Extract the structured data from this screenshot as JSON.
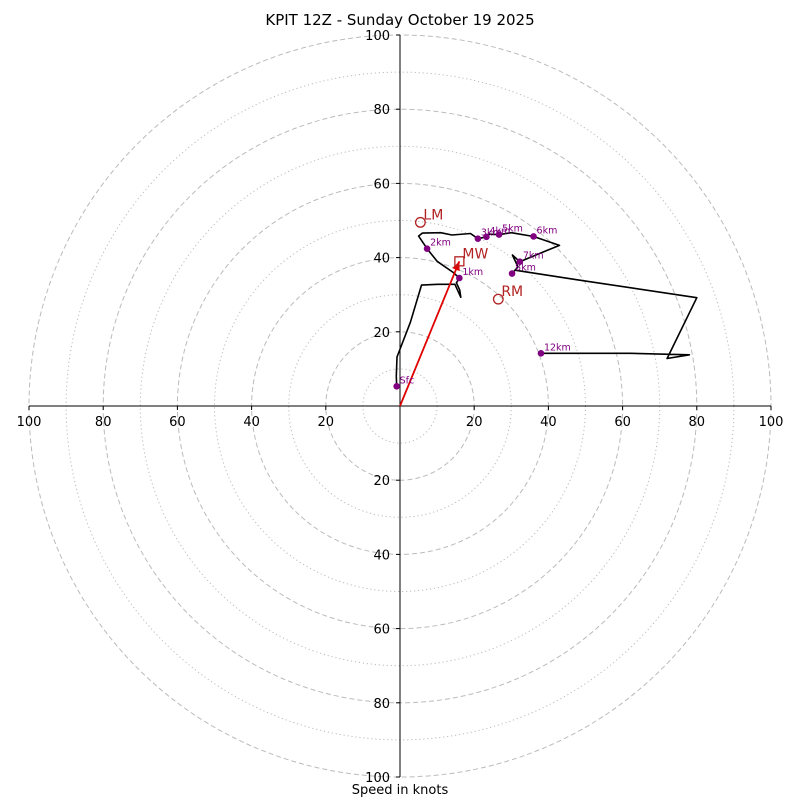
{
  "chart_data": {
    "type": "scatter",
    "subtype": "hodograph",
    "title": "KPIT 12Z - Sunday October 19 2025",
    "xlabel": "Speed in knots",
    "max_speed": 100,
    "ring_major": [
      20,
      40,
      60,
      80,
      100
    ],
    "ring_minor": [
      10,
      30,
      50,
      70,
      90
    ],
    "x_ticks": [
      -100,
      -80,
      -60,
      -40,
      -20,
      20,
      40,
      60,
      80,
      100
    ],
    "x_tick_labels": [
      "100",
      "80",
      "60",
      "40",
      "20",
      "20",
      "40",
      "60",
      "80",
      "100"
    ],
    "y_ticks": [
      100,
      80,
      60,
      40,
      20,
      -20,
      -40,
      -60,
      -80,
      -100
    ],
    "y_tick_labels": [
      "100",
      "80",
      "60",
      "40",
      "20",
      "20",
      "40",
      "60",
      "80",
      "100"
    ],
    "trace": [
      [
        -0.9,
        5.3
      ],
      [
        -1.0,
        8.0
      ],
      [
        -0.9,
        11.0
      ],
      [
        -0.8,
        13.2
      ],
      [
        2.8,
        22.6
      ],
      [
        5.8,
        32.6
      ],
      [
        10.2,
        32.8
      ],
      [
        14.8,
        32.8
      ],
      [
        16.4,
        29.3
      ],
      [
        16.1,
        31.3
      ],
      [
        15.2,
        33.2
      ],
      [
        16.0,
        34.5
      ],
      [
        14.3,
        36.0
      ],
      [
        10.0,
        39.0
      ],
      [
        7.3,
        42.4
      ],
      [
        5.0,
        45.8
      ],
      [
        6.0,
        46.6
      ],
      [
        11.0,
        46.7
      ],
      [
        14.0,
        46.1
      ],
      [
        19.0,
        46.5
      ],
      [
        21.0,
        45.1
      ],
      [
        23.3,
        45.6
      ],
      [
        24.0,
        46.3
      ],
      [
        26.7,
        46.2
      ],
      [
        30.0,
        46.7
      ],
      [
        36.0,
        45.7
      ],
      [
        43.0,
        43.3
      ],
      [
        39.5,
        41.9
      ],
      [
        32.3,
        38.9
      ],
      [
        30.3,
        40.7
      ],
      [
        31.8,
        37.5
      ],
      [
        30.2,
        35.7
      ],
      [
        31.0,
        36.6
      ],
      [
        48.0,
        34.0
      ],
      [
        80.0,
        29.2
      ],
      [
        72.0,
        12.8
      ],
      [
        78.0,
        13.8
      ],
      [
        62.0,
        14.2
      ],
      [
        38.0,
        14.2
      ]
    ],
    "levels": [
      {
        "label": "Sfc",
        "u": -0.9,
        "v": 5.3
      },
      {
        "label": "1km",
        "u": 16.0,
        "v": 34.5
      },
      {
        "label": "2km",
        "u": 7.3,
        "v": 42.4
      },
      {
        "label": "3km",
        "u": 21.0,
        "v": 45.1
      },
      {
        "label": "4km",
        "u": 23.3,
        "v": 45.6
      },
      {
        "label": "5km",
        "u": 26.7,
        "v": 46.2
      },
      {
        "label": "6km",
        "u": 36.0,
        "v": 45.7
      },
      {
        "label": "7km",
        "u": 32.3,
        "v": 38.9
      },
      {
        "label": "8km",
        "u": 30.2,
        "v": 35.7
      },
      {
        "label": "12km",
        "u": 38.0,
        "v": 14.2
      }
    ],
    "motions": [
      {
        "label": "LM",
        "u": 5.5,
        "v": 49.5,
        "marker": "circle"
      },
      {
        "label": "MW",
        "u": 16.0,
        "v": 39.0,
        "marker": "square"
      },
      {
        "label": "RM",
        "u": 26.5,
        "v": 28.8,
        "marker": "circle"
      }
    ],
    "shear_vector": {
      "from": [
        0,
        0
      ],
      "to": [
        16.0,
        39.0
      ]
    },
    "colors": {
      "trace": "#000000",
      "levels": "#800080",
      "motion": "#b22222",
      "shear": "#e00000",
      "rings": "#bbbbbb",
      "axes": "#000000"
    }
  }
}
